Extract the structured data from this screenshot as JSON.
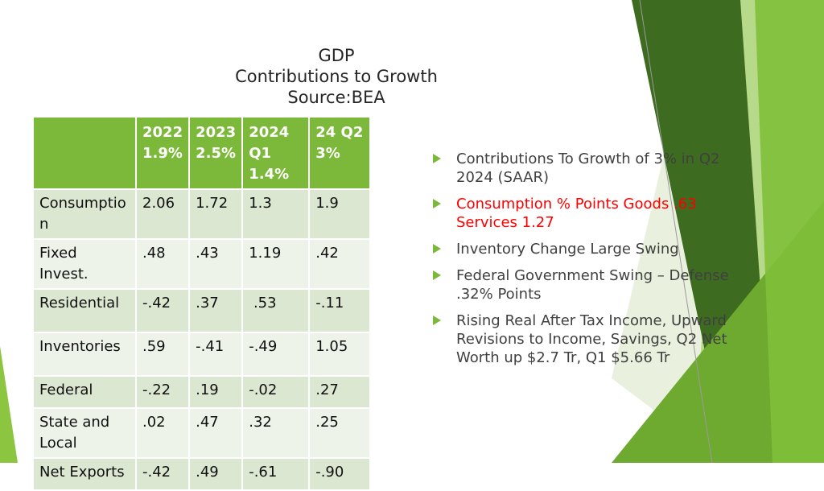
{
  "title": {
    "line1": "GDP",
    "line2": "Contributions to Growth",
    "line3": "Source:BEA"
  },
  "table": {
    "headers": [
      "",
      "2022\n1.9%",
      "2023\n2.5%",
      " 2024\nQ1\n1.4%",
      "24 Q2\n3%"
    ],
    "rows": [
      [
        "Consumption",
        "2.06",
        "1.72",
        "1.3",
        "1.9"
      ],
      [
        "Fixed Invest.",
        ".48",
        ".43",
        "1.19",
        ".42"
      ],
      [
        "Residential",
        "-.42",
        ".37",
        " .53",
        "-.11"
      ],
      [
        "Inventories",
        ".59",
        "-.41",
        "-.49",
        "1.05"
      ],
      [
        "Federal",
        "-.22",
        ".19",
        "-.02",
        ".27"
      ],
      [
        "State and Local",
        ".02",
        ".47",
        ".32",
        ".25"
      ],
      [
        "Net Exports",
        "-.42",
        ".49",
        "-.61",
        "-.90"
      ]
    ]
  },
  "bullets": [
    {
      "text": "Contributions To Growth of 3% in Q2 2024 (SAAR)",
      "highlight": false
    },
    {
      "text": "Consumption  % Points Goods .63 Services 1.27",
      "highlight": true
    },
    {
      "text": "Inventory Change Large Swing",
      "highlight": false
    },
    {
      "text": "Federal Government Swing – Defense .32% Points",
      "highlight": false
    },
    {
      "text": "Rising Real After Tax Income, Upward Revisions to Income, Savings, Q2 Net Worth up $2.7 Tr, Q1 $5.66 Tr",
      "highlight": false
    }
  ],
  "colors": {
    "accent": "#7cb839",
    "highlight_text": "#ff0000",
    "row_dark": "#dbe7d1",
    "row_light": "#edf3e8"
  }
}
